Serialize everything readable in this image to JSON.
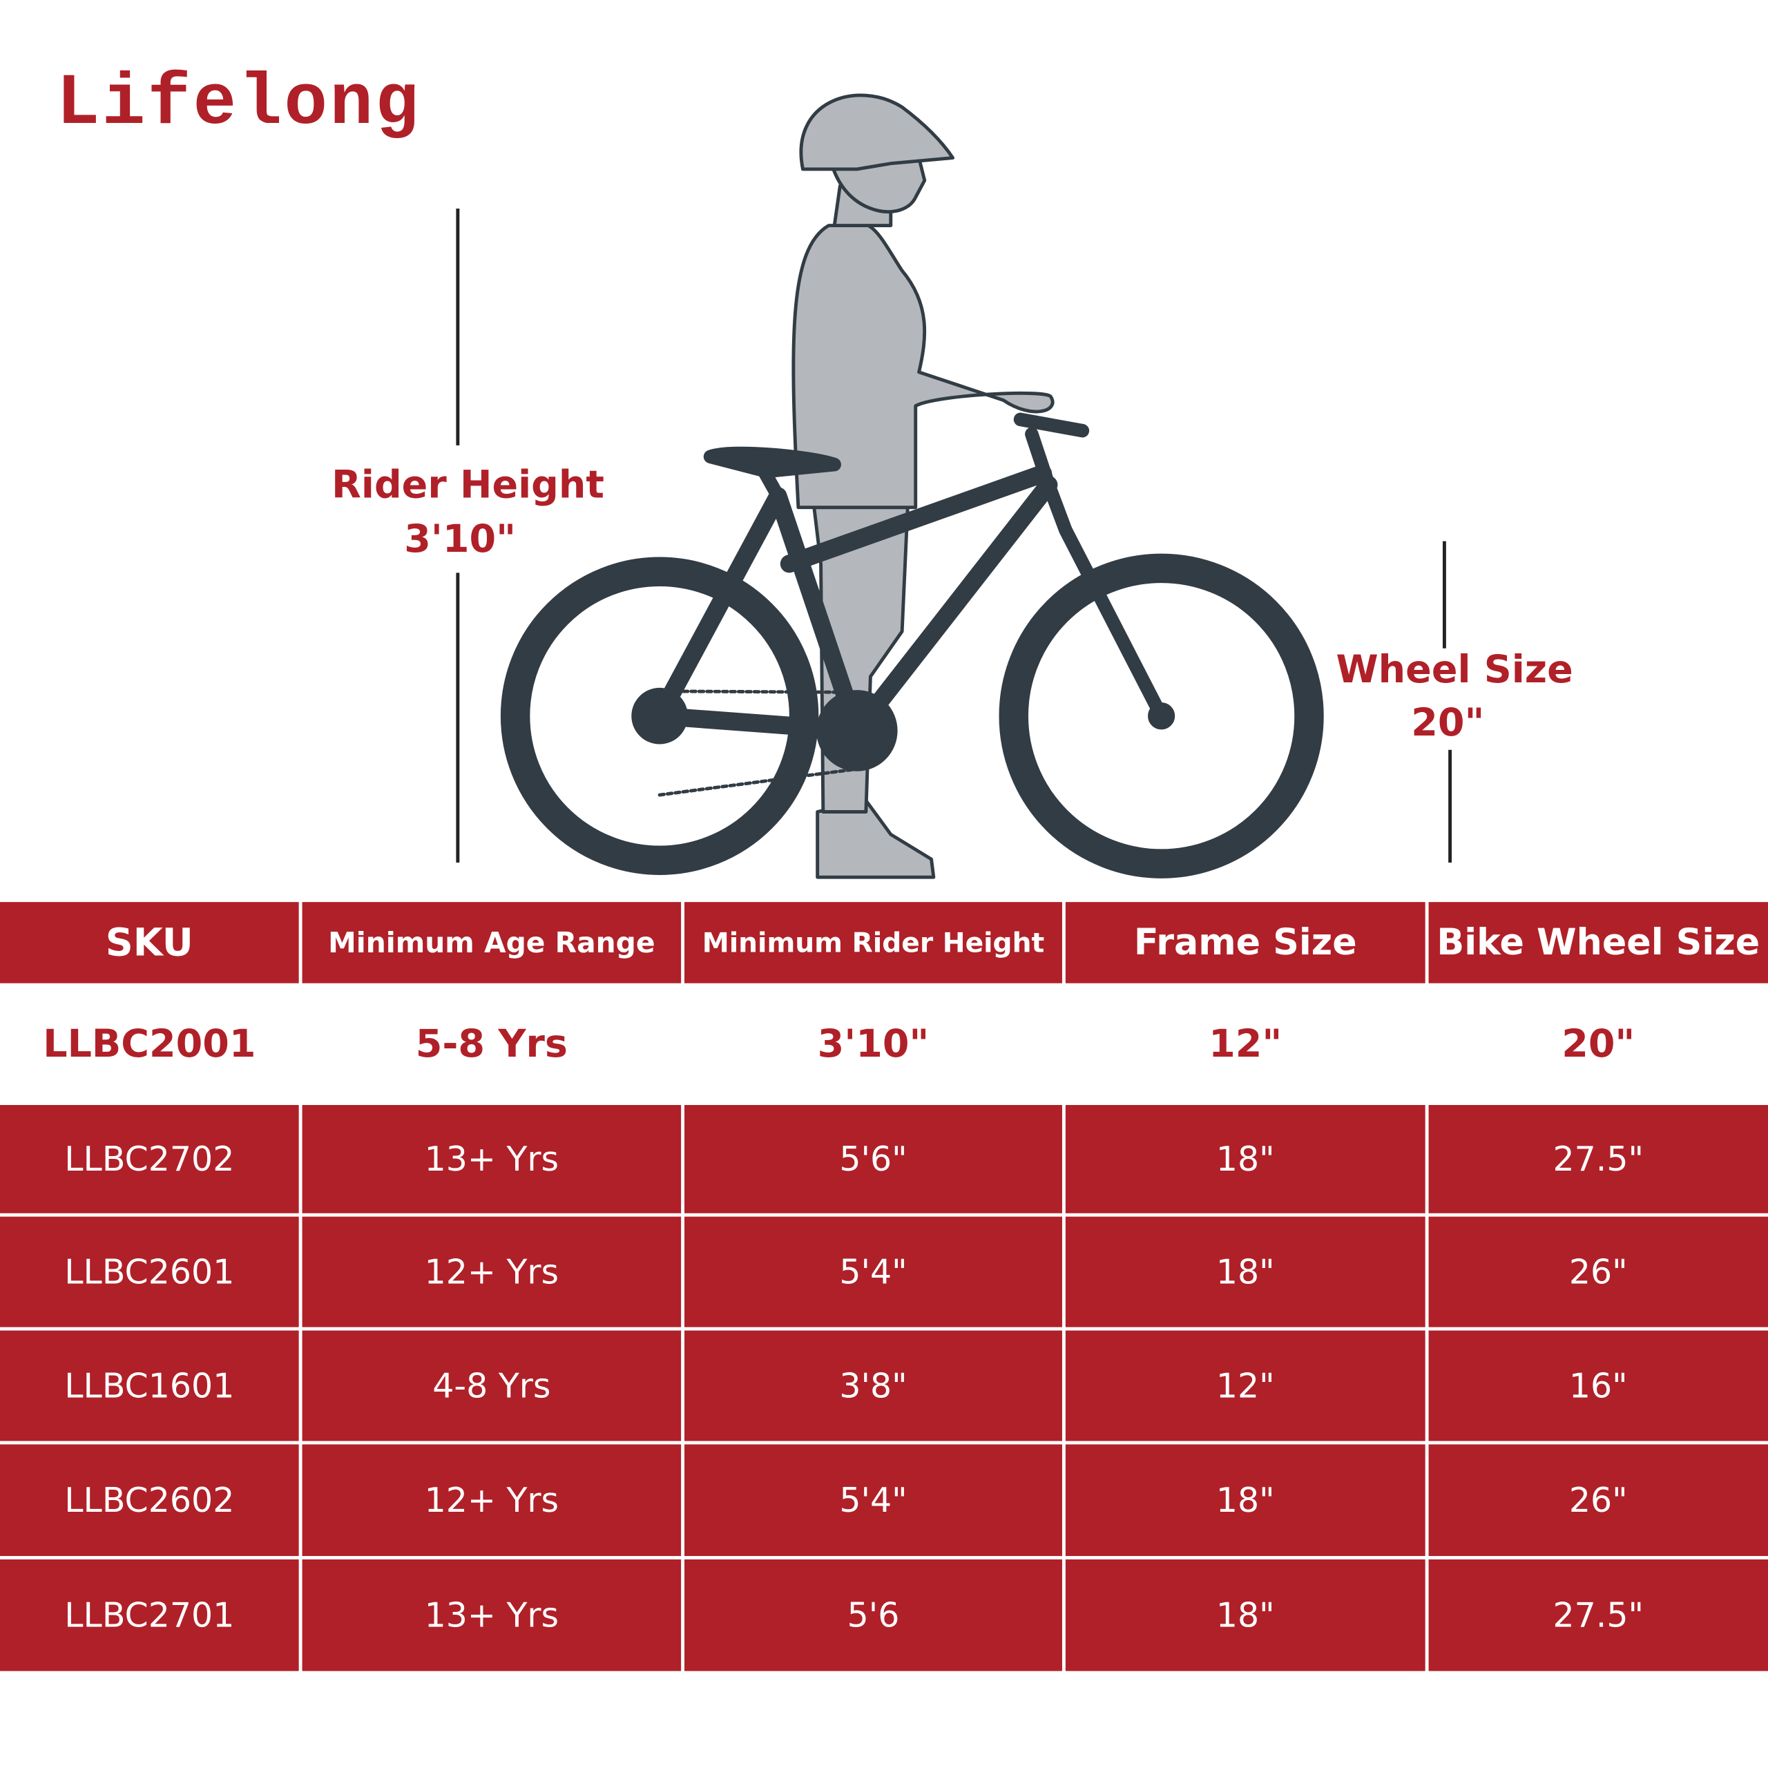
{
  "logo": "Lifelong",
  "rider_label": {
    "title": "Rider Height",
    "value": "3'10\""
  },
  "wheel_label": {
    "title": "Wheel Size",
    "value": "20\""
  },
  "table": {
    "header": [
      "SKU",
      "Minimum Age Range",
      "Minimum Rider Height",
      "Frame Size",
      "Bike Wheel Size"
    ],
    "rows": [
      [
        "LLBC2001",
        "5-8 Yrs",
        "3'10\"",
        "12\"",
        "20\""
      ],
      [
        "LLBC2702",
        "13+ Yrs",
        "5'6\"",
        "18\"",
        "27.5\""
      ],
      [
        "LLBC2601",
        "12+ Yrs",
        "5'4\"",
        "18\"",
        "26\""
      ],
      [
        "LLBC1601",
        "4-8 Yrs",
        "3'8\"",
        "12\"",
        "16\""
      ],
      [
        "LLBC2602",
        "12+ Yrs",
        "5'4\"",
        "18\"",
        "26\""
      ],
      [
        "LLBC2701",
        "13+ Yrs",
        "5'6",
        "18\"",
        "27.5\""
      ]
    ]
  }
}
